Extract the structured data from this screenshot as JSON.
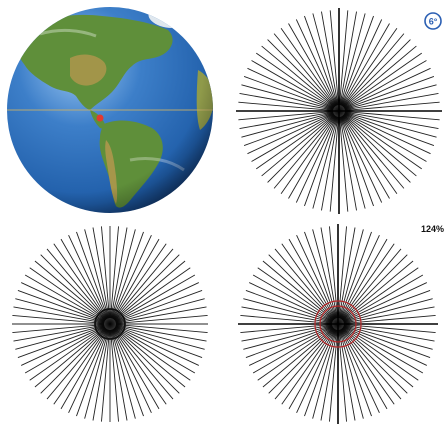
{
  "labels": {
    "badge": "6°",
    "zoom": "124%"
  },
  "colors": {
    "globe_ocean": "#1f5da8",
    "globe_land": "#5f8f3a",
    "globe_desert": "#b8974f",
    "globe_highlight": "#9cc7f2",
    "equator": "#c7b06a",
    "location_marker": "#e23a2f",
    "spokes": "#222222",
    "circle_dark": "#111111",
    "circle_red": "#b5282a",
    "badge_blue": "#2b5fb3"
  },
  "panels": {
    "panel_2": {
      "spokes": 72,
      "has_axes": true,
      "circle": "none"
    },
    "panel_3": {
      "spokes": 72,
      "has_axes": false,
      "circle": "single-dark"
    },
    "panel_4": {
      "spokes": 72,
      "has_axes": true,
      "circle": "double-red"
    }
  }
}
